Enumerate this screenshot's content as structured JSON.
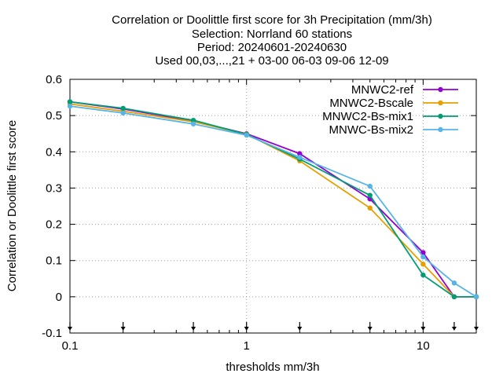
{
  "chart_data": {
    "type": "line",
    "title_lines": [
      "Correlation or Doolittle first score  for 3h Precipitation (mm/3h)",
      "Selection: Norrland     60 stations",
      "Period: 20240601-20240630",
      "Used 00,03,...,21 + 03-00 06-03 09-06 12-09"
    ],
    "xlabel": "thresholds mm/3h",
    "ylabel": "Correlation or Doolittle first score",
    "x_scale": "log",
    "xlim": [
      0.1,
      20
    ],
    "ylim": [
      -0.1,
      0.6
    ],
    "grid": true,
    "legend_position": "top-right",
    "x_ticks": [
      {
        "value": 0.1,
        "label": "0.1"
      },
      {
        "value": 1,
        "label": "1"
      },
      {
        "value": 10,
        "label": "10"
      }
    ],
    "y_ticks": [
      {
        "value": -0.1,
        "label": "-0.1"
      },
      {
        "value": 0,
        "label": "0"
      },
      {
        "value": 0.1,
        "label": "0.1"
      },
      {
        "value": 0.2,
        "label": "0.2"
      },
      {
        "value": 0.3,
        "label": "0.3"
      },
      {
        "value": 0.4,
        "label": "0.4"
      },
      {
        "value": 0.5,
        "label": "0.5"
      },
      {
        "value": 0.6,
        "label": "0.6"
      }
    ],
    "threshold_markers": [
      0.1,
      0.2,
      0.5,
      1,
      2,
      5,
      10,
      15,
      20
    ],
    "series": [
      {
        "name": "MNWC2-ref",
        "color": "#9400d3",
        "x": [
          0.1,
          0.2,
          0.5,
          1,
          2,
          5,
          10,
          15,
          20
        ],
        "y": [
          0.538,
          0.518,
          0.485,
          0.45,
          0.395,
          0.27,
          0.122,
          0.0,
          0.0
        ]
      },
      {
        "name": "MNWC2-Bscale",
        "color": "#e69f00",
        "x": [
          0.1,
          0.2,
          0.5,
          1,
          2,
          5,
          10,
          15,
          20
        ],
        "y": [
          0.532,
          0.512,
          0.483,
          0.449,
          0.375,
          0.245,
          0.09,
          0.0,
          0.0
        ]
      },
      {
        "name": "MNWC2-Bs-mix1",
        "color": "#009e73",
        "x": [
          0.1,
          0.2,
          0.5,
          1,
          2,
          5,
          10,
          15,
          20
        ],
        "y": [
          0.538,
          0.52,
          0.487,
          0.448,
          0.38,
          0.28,
          0.06,
          0.0,
          0.0
        ]
      },
      {
        "name": "MNWC-Bs-mix2",
        "color": "#56b4e9",
        "x": [
          0.1,
          0.2,
          0.5,
          1,
          2,
          5,
          10,
          15,
          20
        ],
        "y": [
          0.526,
          0.507,
          0.477,
          0.446,
          0.385,
          0.305,
          0.11,
          0.038,
          0.0
        ]
      }
    ]
  }
}
